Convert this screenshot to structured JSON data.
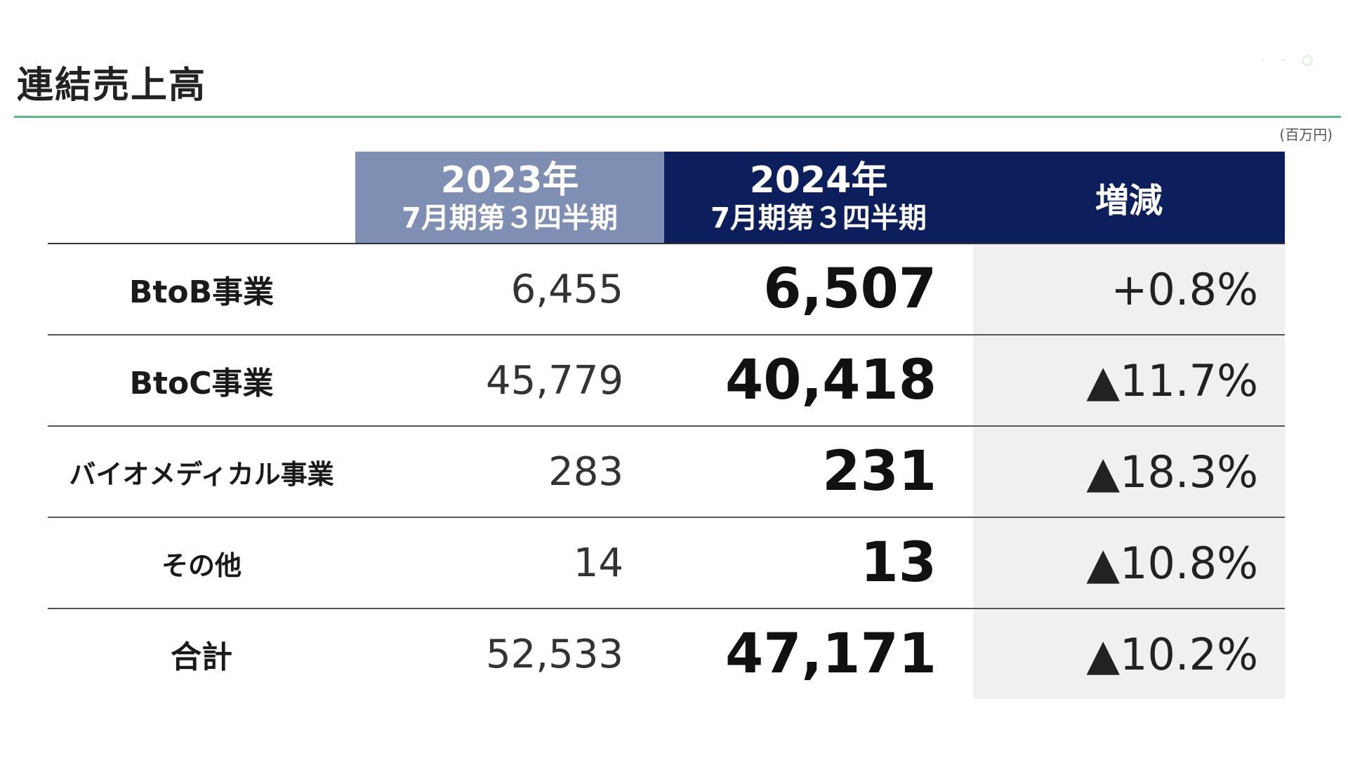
{
  "title": "連結売上高",
  "unit": "(百万円)",
  "colors": {
    "header_2023": "#7f8fb3",
    "header_2024": "#0c1f5c",
    "accent_rule": "#5dbb8a",
    "change_bg": "#f0f0f0"
  },
  "header": {
    "col_2023": {
      "year": "2023年",
      "period": "7月期第３四半期"
    },
    "col_2024": {
      "year": "2024年",
      "period": "7月期第３四半期"
    },
    "col_change": "増減"
  },
  "rows": [
    {
      "label": "BtoB事業",
      "v2023": "6,455",
      "v2024": "6,507",
      "change": "+0.8%"
    },
    {
      "label": "BtoC事業",
      "v2023": "45,779",
      "v2024": "40,418",
      "change": "▲11.7%"
    },
    {
      "label": "バイオメディカル事業",
      "v2023": "283",
      "v2024": "231",
      "change": "▲18.3%"
    },
    {
      "label": "その他",
      "v2023": "14",
      "v2024": "13",
      "change": "▲10.8%"
    },
    {
      "label": "合計",
      "v2023": "52,533",
      "v2024": "47,171",
      "change": "▲10.2%"
    }
  ]
}
